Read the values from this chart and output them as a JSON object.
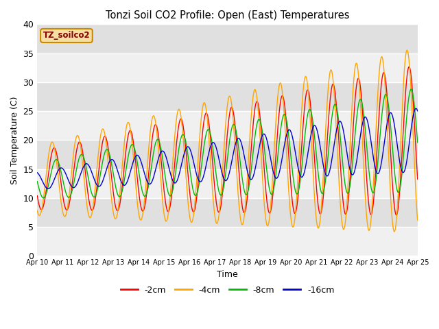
{
  "title": "Tonzi Soil CO2 Profile: Open (East) Temperatures",
  "xlabel": "Time",
  "ylabel": "Soil Temperature (C)",
  "ylim": [
    0,
    40
  ],
  "yticks": [
    0,
    5,
    10,
    15,
    20,
    25,
    30,
    35,
    40
  ],
  "series_colors": [
    "#ff0000",
    "#ffa500",
    "#00bb00",
    "#0000cc"
  ],
  "series_labels": [
    "-2cm",
    "-4cm",
    "-8cm",
    "-16cm"
  ],
  "legend_label": "TZ_soilco2",
  "legend_text_color": "#880000",
  "legend_box_color": "#f5dfa0",
  "legend_edge_color": "#cc8800",
  "n_days": 15,
  "start_day": 10,
  "bg_bands": [
    "#f0f0f0",
    "#e0e0e0"
  ]
}
